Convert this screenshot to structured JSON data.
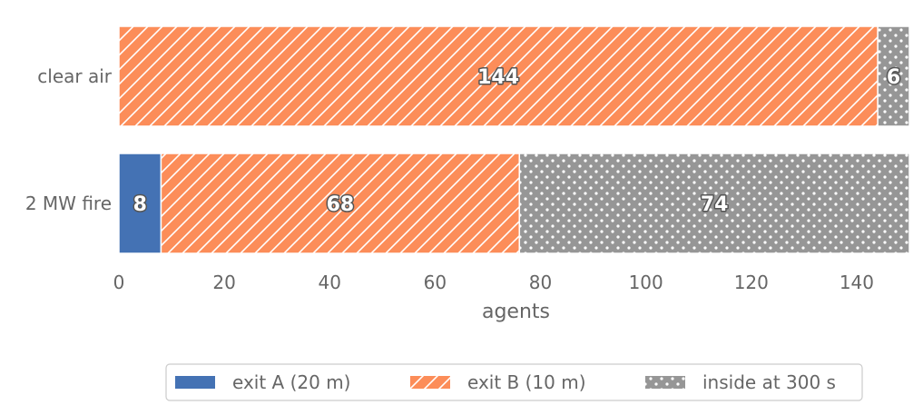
{
  "chart_data": {
    "type": "bar",
    "orientation": "horizontal",
    "stacked": true,
    "categories": [
      "clear air",
      "2 MW fire"
    ],
    "series": [
      {
        "name": "exit A (20 m)",
        "values": [
          0,
          8
        ],
        "labels": [
          "",
          "8"
        ],
        "color": "#4472b4",
        "hatch": "none"
      },
      {
        "name": "exit B (10 m)",
        "values": [
          144,
          68
        ],
        "labels": [
          "144",
          "68"
        ],
        "color": "#fc8d59",
        "hatch": "diagonal"
      },
      {
        "name": "inside at 300 s",
        "values": [
          6,
          74
        ],
        "labels": [
          "6",
          "74"
        ],
        "color": "#969696",
        "hatch": "dots"
      }
    ],
    "xticks": [
      0,
      20,
      40,
      60,
      80,
      100,
      120,
      140
    ],
    "xtick_labels": [
      "0",
      "20",
      "40",
      "60",
      "80",
      "100",
      "120",
      "140"
    ],
    "xlim": [
      0,
      150
    ],
    "xlabel": "agents",
    "ylabel": "",
    "title": "",
    "grid": false,
    "legend_position": "bottom-center"
  }
}
